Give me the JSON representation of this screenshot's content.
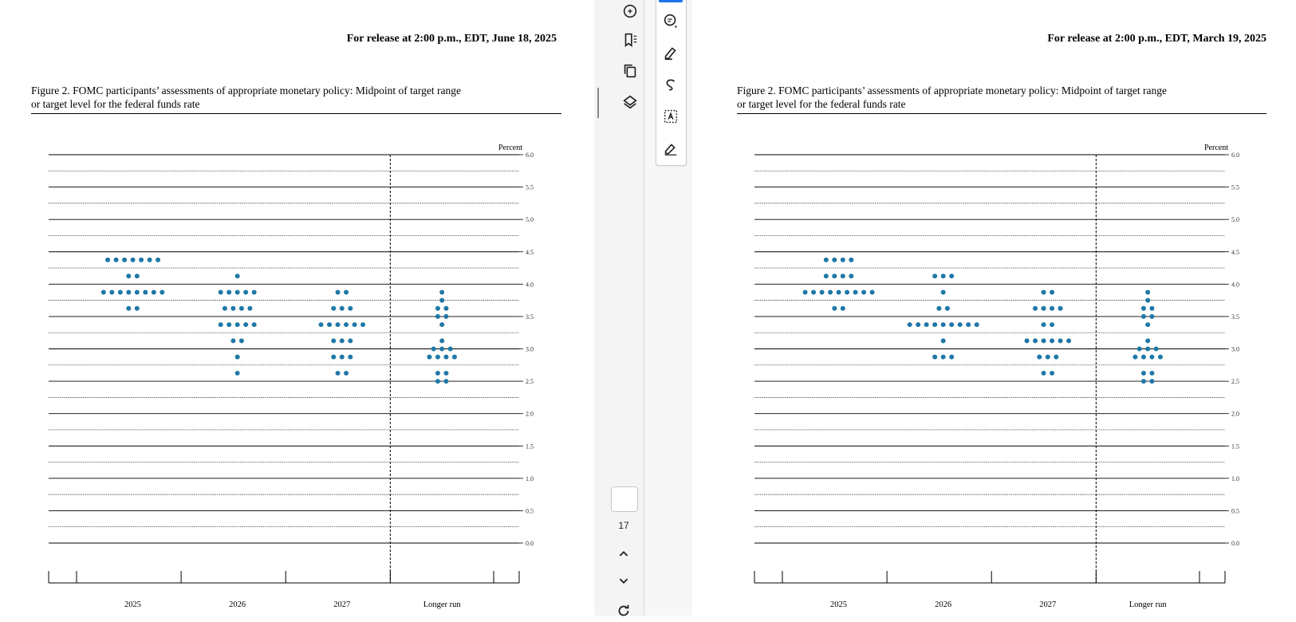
{
  "left_doc": {
    "release": "For release at 2:00 p.m., EDT, June 18, 2025",
    "caption_line1": "Figure 2.  FOMC participants’ assessments of appropriate monetary policy: Midpoint of target range",
    "caption_line2": "or target level for the federal funds rate"
  },
  "right_doc": {
    "release": "For release at 2:00 p.m., EDT, March 19, 2025",
    "caption_line1": "Figure 2.  FOMC participants’ assessments of appropriate monetary policy: Midpoint of target range",
    "caption_line2": "or target level for the federal funds rate"
  },
  "toolbar": {
    "page_number": "17",
    "left_icons": [
      "chat-ai-icon",
      "bookmark-list-icon",
      "copy-pages-icon",
      "layers-icon"
    ],
    "annotation_icons": [
      "add-comment-icon",
      "highlighter-icon",
      "freehand-draw-icon",
      "text-select-box-icon",
      "signature-icon"
    ],
    "nav_icons": [
      "chevron-up-icon",
      "chevron-down-icon",
      "rotate-icon"
    ]
  },
  "colors": {
    "dot": "#1f77a8",
    "accent": "#1a73e8"
  },
  "chart_data": [
    {
      "type": "scatter",
      "title": "",
      "ylabel": "Percent",
      "ylim": [
        0,
        6
      ],
      "yticks": [
        "6.0",
        "5.5",
        "5.0",
        "4.5",
        "4.0",
        "3.5",
        "3.0",
        "2.5",
        "2.0",
        "1.5",
        "1.0",
        "0.5",
        "0.0"
      ],
      "categories": [
        "2025",
        "2026",
        "2027",
        "Longer run"
      ],
      "dots": [
        {
          "category": "2025",
          "rows": [
            {
              "y": 4.375,
              "count": 7
            },
            {
              "y": 4.125,
              "count": 2
            },
            {
              "y": 3.875,
              "count": 8
            },
            {
              "y": 3.625,
              "count": 2
            }
          ]
        },
        {
          "category": "2026",
          "rows": [
            {
              "y": 4.125,
              "count": 1
            },
            {
              "y": 3.875,
              "count": 5
            },
            {
              "y": 3.625,
              "count": 4
            },
            {
              "y": 3.375,
              "count": 5
            },
            {
              "y": 3.125,
              "count": 2
            },
            {
              "y": 2.875,
              "count": 1
            },
            {
              "y": 2.625,
              "count": 1
            }
          ]
        },
        {
          "category": "2027",
          "rows": [
            {
              "y": 3.875,
              "count": 2
            },
            {
              "y": 3.625,
              "count": 3
            },
            {
              "y": 3.375,
              "count": 6
            },
            {
              "y": 3.125,
              "count": 3
            },
            {
              "y": 2.875,
              "count": 3
            },
            {
              "y": 2.625,
              "count": 2
            }
          ]
        },
        {
          "category": "Longer run",
          "rows": [
            {
              "y": 3.875,
              "count": 1
            },
            {
              "y": 3.75,
              "count": 1
            },
            {
              "y": 3.625,
              "count": 2
            },
            {
              "y": 3.5,
              "count": 2
            },
            {
              "y": 3.375,
              "count": 1
            },
            {
              "y": 3.125,
              "count": 1
            },
            {
              "y": 3.0,
              "count": 3
            },
            {
              "y": 2.875,
              "count": 4
            },
            {
              "y": 2.625,
              "count": 2
            },
            {
              "y": 2.5,
              "count": 2
            }
          ]
        }
      ]
    },
    {
      "type": "scatter",
      "title": "",
      "ylabel": "Percent",
      "ylim": [
        0,
        6
      ],
      "yticks": [
        "6.0",
        "5.5",
        "5.0",
        "4.5",
        "4.0",
        "3.5",
        "3.0",
        "2.5",
        "2.0",
        "1.5",
        "1.0",
        "0.5",
        "0.0"
      ],
      "categories": [
        "2025",
        "2026",
        "2027",
        "Longer run"
      ],
      "dots": [
        {
          "category": "2025",
          "rows": [
            {
              "y": 4.375,
              "count": 4
            },
            {
              "y": 4.125,
              "count": 4
            },
            {
              "y": 3.875,
              "count": 9
            },
            {
              "y": 3.625,
              "count": 2
            }
          ]
        },
        {
          "category": "2026",
          "rows": [
            {
              "y": 4.125,
              "count": 3
            },
            {
              "y": 3.875,
              "count": 1
            },
            {
              "y": 3.625,
              "count": 2
            },
            {
              "y": 3.375,
              "count": 9
            },
            {
              "y": 3.125,
              "count": 1
            },
            {
              "y": 2.875,
              "count": 3
            }
          ]
        },
        {
          "category": "2027",
          "rows": [
            {
              "y": 3.875,
              "count": 2
            },
            {
              "y": 3.625,
              "count": 4
            },
            {
              "y": 3.375,
              "count": 2
            },
            {
              "y": 3.125,
              "count": 6
            },
            {
              "y": 2.875,
              "count": 3
            },
            {
              "y": 2.625,
              "count": 2
            }
          ]
        },
        {
          "category": "Longer run",
          "rows": [
            {
              "y": 3.875,
              "count": 1
            },
            {
              "y": 3.75,
              "count": 1
            },
            {
              "y": 3.625,
              "count": 2
            },
            {
              "y": 3.5,
              "count": 2
            },
            {
              "y": 3.375,
              "count": 1
            },
            {
              "y": 3.125,
              "count": 1
            },
            {
              "y": 3.0,
              "count": 3
            },
            {
              "y": 2.875,
              "count": 4
            },
            {
              "y": 2.625,
              "count": 2
            },
            {
              "y": 2.5,
              "count": 2
            }
          ]
        }
      ]
    }
  ]
}
